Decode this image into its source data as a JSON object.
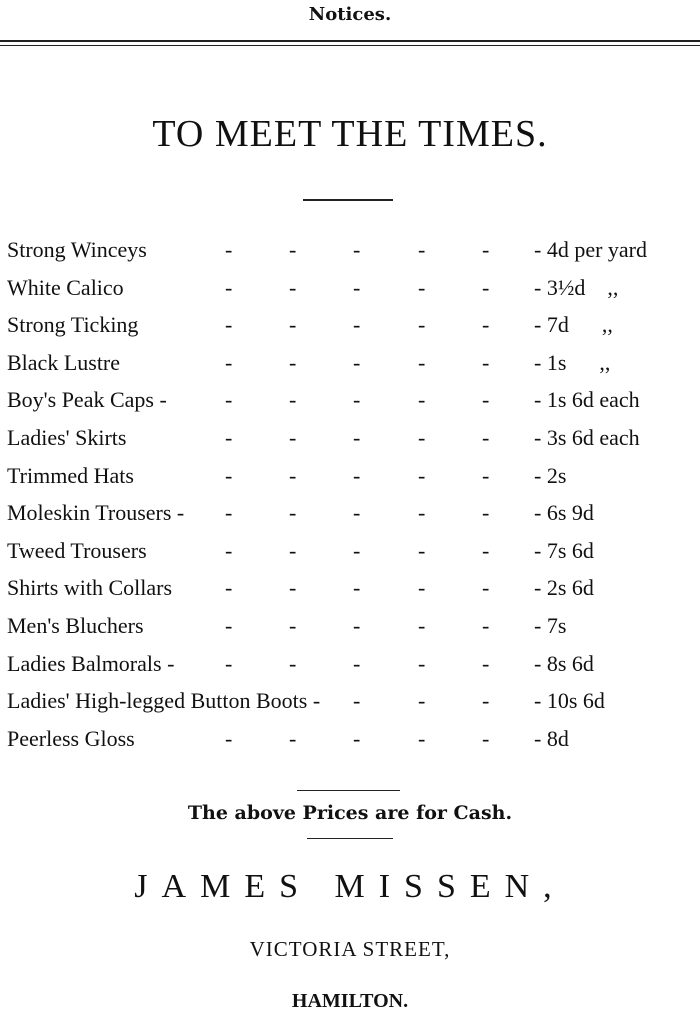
{
  "header": {
    "section": "Notices."
  },
  "advert": {
    "title": "TO MEET THE TIMES.",
    "items": [
      {
        "name": "Strong Winceys",
        "price": "- 4d per yard"
      },
      {
        "name": "White Calico",
        "price": "- 3½d    ,,"
      },
      {
        "name": "Strong Ticking",
        "price": "- 7d      ,,"
      },
      {
        "name": "Black Lustre",
        "price": "- 1s      ,,"
      },
      {
        "name": "Boy's Peak Caps -",
        "price": "- 1s 6d each"
      },
      {
        "name": "Ladies' Skirts",
        "price": "- 3s 6d each"
      },
      {
        "name": "Trimmed Hats",
        "price": "- 2s"
      },
      {
        "name": "Moleskin Trousers -",
        "price": "- 6s 9d"
      },
      {
        "name": "Tweed Trousers",
        "price": "- 7s 6d"
      },
      {
        "name": "Shirts with Collars",
        "price": "- 2s 6d"
      },
      {
        "name": "Men's Bluchers",
        "price": "- 7s"
      },
      {
        "name": "Ladies  Balmorals -",
        "price": "- 8s 6d"
      },
      {
        "name": "Ladies' High-legged Button Boots -",
        "price": "- 10s 6d"
      },
      {
        "name": "Peerless Gloss",
        "price": "- 8d"
      }
    ],
    "cash_note": "The above Prices are for Cash.",
    "merchant": "JAMES MISSEN,",
    "street": "VICTORIA STREET,",
    "town": "HAMILTON."
  }
}
